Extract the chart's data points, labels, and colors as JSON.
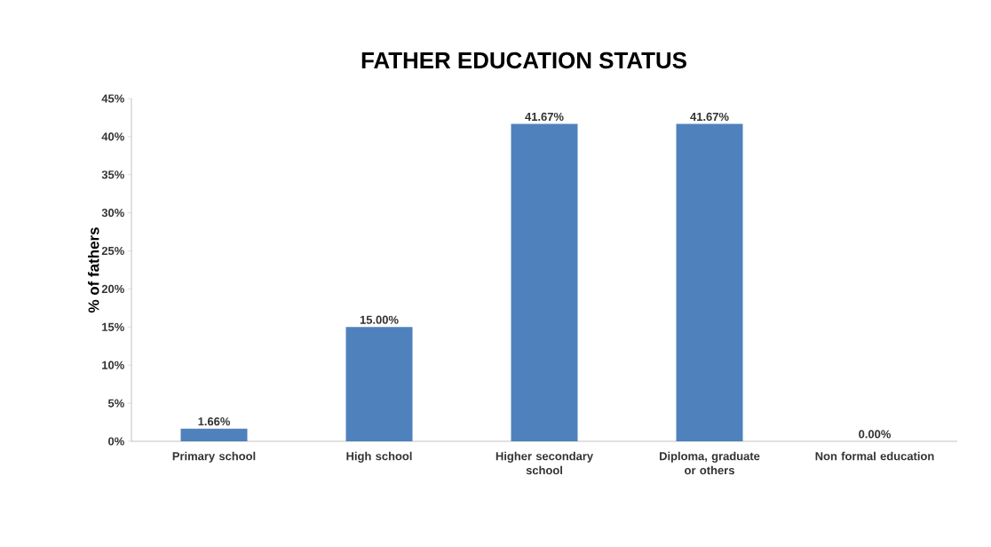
{
  "chart_data": {
    "type": "bar",
    "title": "FATHER EDUCATION  STATUS",
    "ylabel": "% of fathers",
    "categories": [
      "Primary school",
      "High school",
      "Higher secondary school",
      "Diploma, graduate or others",
      "Non formal education"
    ],
    "values": [
      1.66,
      15.0,
      41.67,
      41.67,
      0.0
    ],
    "value_labels": [
      "1.66%",
      "15.00%",
      "41.67%",
      "41.67%",
      "0.00%"
    ],
    "color": "#4f81bd",
    "ylim": [
      0,
      45
    ],
    "yticks": [
      {
        "value": 0,
        "label": "0%"
      },
      {
        "value": 5,
        "label": "5%"
      },
      {
        "value": 10,
        "label": "10%"
      },
      {
        "value": 15,
        "label": "15%"
      },
      {
        "value": 20,
        "label": "20%"
      },
      {
        "value": 25,
        "label": "25%"
      },
      {
        "value": 30,
        "label": "30%"
      },
      {
        "value": 35,
        "label": "35%"
      },
      {
        "value": 40,
        "label": "40%"
      },
      {
        "value": 45,
        "label": "45%"
      }
    ]
  }
}
